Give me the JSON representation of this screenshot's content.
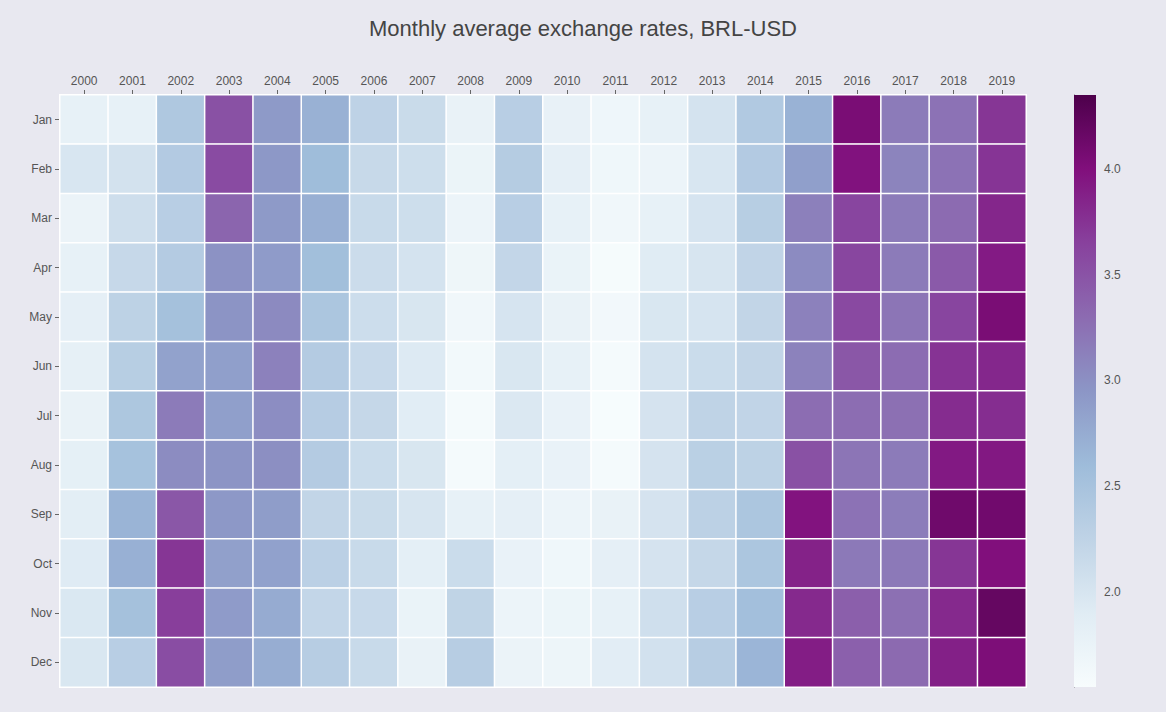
{
  "chart_data": {
    "type": "heatmap",
    "title": "Monthly average exchange rates, BRL-USD",
    "x": [
      2000,
      2001,
      2002,
      2003,
      2004,
      2005,
      2006,
      2007,
      2008,
      2009,
      2010,
      2011,
      2012,
      2013,
      2014,
      2015,
      2016,
      2017,
      2018,
      2019
    ],
    "y": [
      "Jan",
      "Feb",
      "Mar",
      "Apr",
      "May",
      "Jun",
      "Jul",
      "Aug",
      "Sep",
      "Oct",
      "Nov",
      "Dec"
    ],
    "values": [
      [
        1.8,
        1.8,
        2.42,
        3.52,
        2.91,
        2.7,
        2.26,
        2.14,
        1.77,
        2.32,
        1.78,
        1.68,
        1.79,
        2.03,
        2.4,
        2.69,
        4.05,
        3.17,
        3.24,
        3.73
      ],
      [
        1.98,
        2.04,
        2.38,
        3.57,
        2.93,
        2.59,
        2.17,
        2.1,
        1.73,
        2.36,
        1.83,
        1.67,
        1.72,
        1.98,
        2.38,
        2.87,
        3.98,
        3.1,
        3.24,
        3.74
      ],
      [
        1.74,
        2.09,
        2.32,
        3.35,
        2.91,
        2.72,
        2.15,
        2.1,
        1.72,
        2.32,
        1.79,
        1.66,
        1.8,
        2.01,
        2.33,
        3.13,
        3.62,
        3.17,
        3.3,
        3.84
      ],
      [
        1.79,
        2.18,
        2.37,
        2.98,
        2.9,
        2.56,
        2.12,
        2.03,
        1.69,
        2.21,
        1.75,
        1.58,
        1.9,
        2.0,
        2.23,
        3.04,
        3.61,
        3.17,
        3.44,
        3.92
      ],
      [
        1.83,
        2.27,
        2.53,
        2.97,
        3.05,
        2.45,
        2.11,
        1.99,
        1.66,
        2.01,
        1.77,
        1.63,
        1.97,
        2.01,
        2.22,
        3.12,
        3.58,
        3.22,
        3.62,
        4.05
      ],
      [
        1.81,
        2.33,
        2.84,
        2.87,
        3.12,
        2.37,
        2.16,
        1.93,
        1.62,
        1.97,
        1.8,
        1.59,
        2.03,
        2.13,
        2.22,
        3.11,
        3.47,
        3.29,
        3.75,
        3.83
      ],
      [
        1.77,
        2.44,
        3.17,
        2.87,
        3.02,
        2.35,
        2.19,
        1.88,
        1.59,
        1.95,
        1.76,
        1.56,
        2.02,
        2.25,
        2.23,
        3.28,
        3.28,
        3.26,
        3.8,
        3.79
      ],
      [
        1.82,
        2.51,
        3.03,
        2.97,
        3.01,
        2.37,
        2.13,
        1.99,
        1.6,
        1.84,
        1.76,
        1.59,
        2.02,
        2.3,
        2.27,
        3.52,
        3.22,
        3.17,
        3.93,
        3.94
      ],
      [
        1.85,
        2.67,
        3.47,
        2.93,
        2.89,
        2.22,
        2.14,
        2.0,
        1.8,
        1.83,
        1.72,
        1.77,
        2.02,
        2.28,
        2.45,
        3.97,
        3.24,
        3.15,
        4.12,
        4.11
      ],
      [
        1.91,
        2.71,
        3.73,
        2.86,
        2.85,
        2.29,
        2.15,
        1.84,
        2.13,
        1.76,
        1.67,
        1.83,
        2.02,
        2.19,
        2.45,
        3.87,
        3.19,
        3.19,
        3.73,
        4.0
      ],
      [
        1.96,
        2.53,
        3.67,
        2.9,
        2.76,
        2.21,
        2.16,
        1.75,
        2.24,
        1.72,
        1.71,
        1.8,
        2.08,
        2.32,
        2.55,
        3.82,
        3.4,
        3.26,
        3.82,
        4.19
      ],
      [
        1.97,
        2.32,
        3.55,
        2.89,
        2.74,
        2.34,
        2.15,
        1.77,
        2.34,
        1.74,
        1.7,
        1.87,
        2.05,
        2.34,
        2.66,
        3.9,
        3.39,
        3.31,
        3.88,
        4.03
      ]
    ],
    "colorbar": {
      "lim": [
        1.55,
        4.35
      ],
      "ticks": [
        {
          "value": 2.0,
          "label": "2.0"
        },
        2.5,
        {
          "value": 3.0,
          "label": "3.0"
        },
        3.5,
        {
          "value": 4.0,
          "label": "4.0"
        }
      ]
    }
  }
}
